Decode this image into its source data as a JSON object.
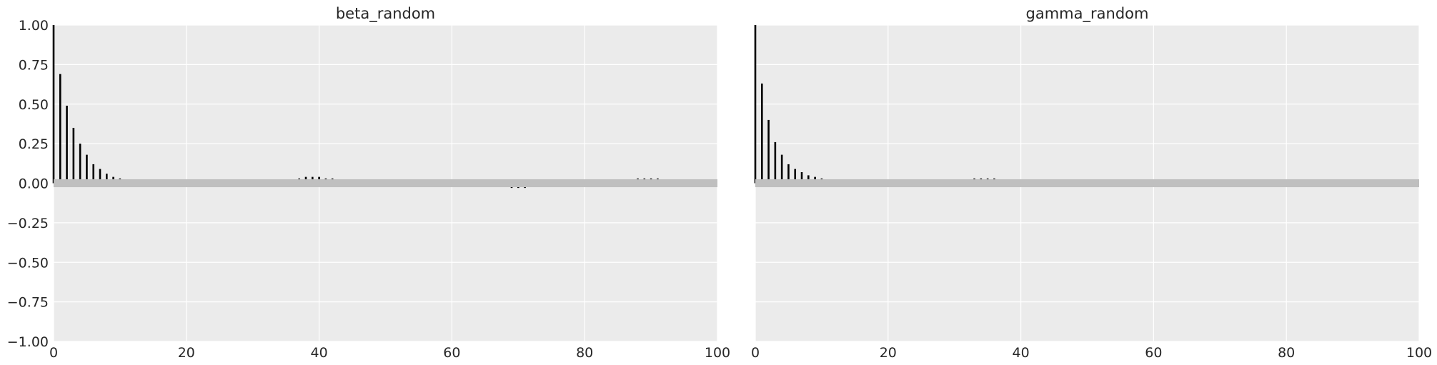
{
  "chart_data": [
    {
      "type": "bar",
      "title": "beta_random",
      "xlim": [
        0,
        100
      ],
      "ylim": [
        -1.0,
        1.0
      ],
      "grid": true,
      "xticks": [
        0,
        20,
        40,
        60,
        80,
        100
      ],
      "xtick_labels": [
        "0",
        "20",
        "40",
        "60",
        "80",
        "100"
      ],
      "yticks": [
        1.0,
        0.75,
        0.5,
        0.25,
        0.0,
        -0.25,
        -0.5,
        -0.75,
        -1.0
      ],
      "ytick_labels": [
        "1.00",
        "0.75",
        "0.50",
        "0.25",
        "0.00",
        "−0.25",
        "−0.50",
        "−0.75",
        "−1.00"
      ],
      "confidence_band": [
        -0.025,
        0.025
      ],
      "x": [
        0,
        1,
        2,
        3,
        4,
        5,
        6,
        7,
        8,
        9,
        10,
        11,
        12,
        13,
        14,
        15,
        16,
        17,
        18,
        19,
        20,
        21,
        22,
        23,
        24,
        25,
        26,
        27,
        28,
        29,
        30,
        31,
        32,
        33,
        34,
        35,
        36,
        37,
        38,
        39,
        40,
        41,
        42,
        43,
        44,
        45,
        46,
        47,
        48,
        49,
        50,
        51,
        52,
        53,
        54,
        55,
        56,
        57,
        58,
        59,
        60,
        61,
        62,
        63,
        64,
        65,
        66,
        67,
        68,
        69,
        70,
        71,
        72,
        73,
        74,
        75,
        76,
        77,
        78,
        79,
        80,
        81,
        82,
        83,
        84,
        85,
        86,
        87,
        88,
        89,
        90,
        91,
        92,
        93,
        94,
        95
      ],
      "values": [
        1.0,
        0.69,
        0.49,
        0.35,
        0.25,
        0.18,
        0.12,
        0.09,
        0.06,
        0.04,
        0.03,
        0.02,
        0.01,
        0.0,
        -0.01,
        -0.01,
        -0.01,
        0.0,
        0.01,
        0.02,
        0.02,
        0.02,
        0.02,
        0.02,
        0.01,
        0.0,
        -0.01,
        -0.01,
        -0.01,
        -0.01,
        -0.01,
        0.0,
        0.01,
        0.01,
        0.01,
        0.02,
        0.02,
        0.03,
        0.04,
        0.04,
        0.04,
        0.03,
        0.03,
        0.02,
        0.02,
        0.02,
        0.01,
        0.01,
        0.0,
        -0.01,
        -0.01,
        -0.01,
        -0.01,
        -0.02,
        -0.02,
        -0.02,
        -0.02,
        -0.02,
        -0.02,
        -0.02,
        -0.02,
        -0.02,
        -0.02,
        -0.02,
        -0.02,
        -0.02,
        -0.02,
        -0.02,
        -0.02,
        -0.03,
        -0.03,
        -0.03,
        -0.02,
        -0.02,
        -0.02,
        -0.01,
        -0.01,
        -0.01,
        0.0,
        0.0,
        0.01,
        0.01,
        0.01,
        0.01,
        0.01,
        0.01,
        0.02,
        0.02,
        0.03,
        0.03,
        0.03,
        0.03,
        0.02,
        0.02,
        0.01,
        0.01
      ]
    },
    {
      "type": "bar",
      "title": "gamma_random",
      "xlim": [
        0,
        100
      ],
      "ylim": [
        -1.0,
        1.0
      ],
      "grid": true,
      "xticks": [
        0,
        20,
        40,
        60,
        80,
        100
      ],
      "xtick_labels": [
        "0",
        "20",
        "40",
        "60",
        "80",
        "100"
      ],
      "confidence_band": [
        -0.025,
        0.025
      ],
      "x": [
        0,
        1,
        2,
        3,
        4,
        5,
        6,
        7,
        8,
        9,
        10,
        11,
        12,
        13,
        14,
        15,
        16,
        17,
        18,
        19,
        20,
        21,
        22,
        23,
        24,
        25,
        26,
        27,
        28,
        29,
        30,
        31,
        32,
        33,
        34,
        35,
        36,
        37,
        38,
        39,
        40,
        41,
        42,
        43,
        44,
        45,
        46,
        47,
        48,
        49,
        50,
        51,
        52,
        53,
        54,
        55,
        56,
        57,
        58,
        59,
        60,
        61,
        62,
        63,
        64,
        65,
        66,
        67,
        68,
        69,
        70,
        71,
        72,
        73,
        74,
        75,
        76,
        77,
        78,
        79,
        80,
        81,
        82,
        83,
        84,
        85,
        86,
        87,
        88,
        89,
        90,
        91,
        92,
        93,
        94,
        95,
        96,
        97,
        98,
        99
      ],
      "values": [
        1.0,
        0.63,
        0.4,
        0.26,
        0.18,
        0.12,
        0.09,
        0.07,
        0.05,
        0.04,
        0.03,
        0.02,
        0.01,
        0.0,
        0.01,
        0.01,
        0.02,
        0.02,
        0.02,
        0.01,
        0.0,
        -0.01,
        -0.01,
        -0.01,
        0.0,
        0.01,
        0.01,
        0.01,
        0.01,
        0.01,
        0.02,
        0.02,
        0.02,
        0.03,
        0.03,
        0.03,
        0.03,
        0.02,
        0.02,
        0.02,
        0.02,
        0.02,
        0.01,
        0.01,
        0.01,
        0.0,
        0.0,
        -0.01,
        -0.02,
        -0.02,
        -0.01,
        0.0,
        0.0,
        0.0,
        0.01,
        0.01,
        0.02,
        0.02,
        0.02,
        0.02,
        0.02,
        0.02,
        0.01,
        0.0,
        0.0,
        0.0,
        0.0,
        -0.01,
        -0.01,
        -0.01,
        -0.01,
        0.0,
        0.01,
        0.01,
        0.0,
        0.0,
        -0.01,
        -0.01,
        -0.01,
        -0.01,
        -0.01,
        -0.01,
        -0.01,
        -0.01,
        -0.02,
        -0.02,
        -0.02,
        -0.01,
        -0.01,
        -0.01,
        0.0,
        0.0,
        0.0,
        -0.01,
        -0.01,
        -0.01,
        -0.01,
        -0.01,
        -0.01,
        -0.01
      ]
    }
  ],
  "colors": {
    "panel_bg": "#ebebeb",
    "grid": "#ffffff",
    "bar": "#000000",
    "band": "#bfbfbf",
    "text": "#262626"
  }
}
